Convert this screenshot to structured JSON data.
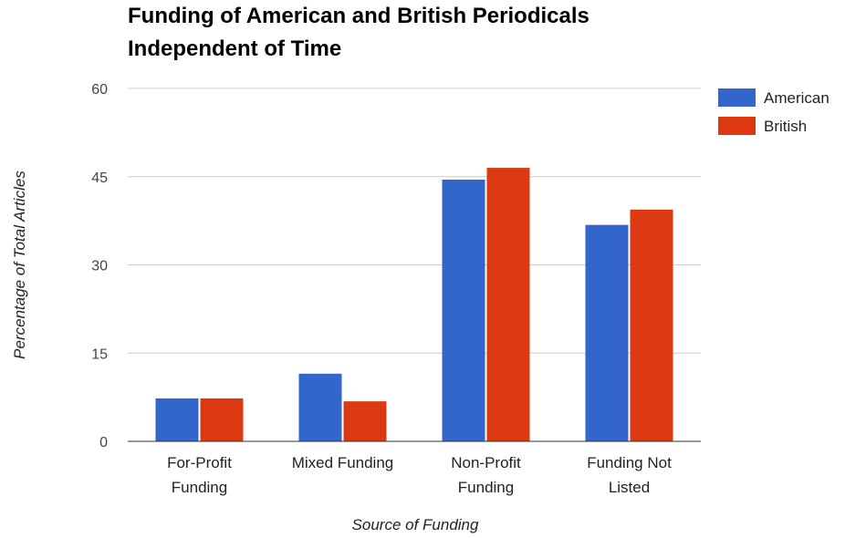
{
  "chart_data": {
    "type": "bar",
    "title": [
      "Funding of American and British Periodicals",
      "Independent of Time"
    ],
    "xlabel": "Source of Funding",
    "ylabel": "Percentage of Total Articles",
    "categories": [
      [
        "For-Profit",
        "Funding"
      ],
      [
        "Mixed Funding"
      ],
      [
        "Non-Profit",
        "Funding"
      ],
      [
        "Funding Not",
        "Listed"
      ]
    ],
    "series": [
      {
        "name": "American",
        "color": "#3366cc",
        "values": [
          7.3,
          11.5,
          44.5,
          36.8
        ]
      },
      {
        "name": "British",
        "color": "#dc3912",
        "values": [
          7.3,
          6.8,
          46.5,
          39.4
        ]
      }
    ],
    "ylim": [
      0,
      60
    ],
    "yticks": [
      0,
      15,
      30,
      45,
      60
    ],
    "grid": true,
    "legend": "right"
  }
}
